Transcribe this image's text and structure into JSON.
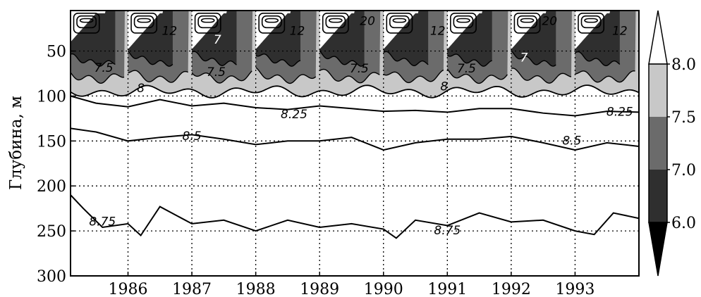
{
  "chart_data": {
    "type": "heatmap",
    "title": "",
    "xlabel": "",
    "ylabel": "Глубина, м",
    "xlim": [
      1985.1,
      1994.0
    ],
    "ylim": [
      300,
      5
    ],
    "x_ticks": [
      1986,
      1987,
      1988,
      1989,
      1990,
      1991,
      1992,
      1993
    ],
    "x_tick_labels": [
      "1986",
      "1987",
      "1988",
      "1989",
      "1990",
      "1991",
      "1992",
      "1993"
    ],
    "y_ticks": [
      50,
      100,
      150,
      200,
      250,
      300
    ],
    "y_tick_labels": [
      "50",
      "100",
      "150",
      "200",
      "250",
      "300"
    ],
    "grid": true,
    "colorbar": {
      "levels": [
        6.0,
        7.0,
        7.5,
        8.0
      ],
      "level_labels": [
        "6.0",
        "7.0",
        "7.5",
        "8.0"
      ],
      "colors": [
        "#000000",
        "#2f2f2f",
        "#6b6b6b",
        "#c8c8c8",
        "#ffffff"
      ],
      "extend": "both"
    },
    "contour_labels": [
      {
        "text": "12",
        "x": 1986.65,
        "y": 28
      },
      {
        "text": "7",
        "x": 1987.4,
        "y": 38
      },
      {
        "text": "12",
        "x": 1988.65,
        "y": 28
      },
      {
        "text": "20",
        "x": 1989.75,
        "y": 17
      },
      {
        "text": "12",
        "x": 1990.85,
        "y": 28
      },
      {
        "text": "20",
        "x": 1992.6,
        "y": 17
      },
      {
        "text": "7",
        "x": 1992.2,
        "y": 58
      },
      {
        "text": "12",
        "x": 1993.7,
        "y": 28
      },
      {
        "text": "7.5",
        "x": 1985.62,
        "y": 69
      },
      {
        "text": "7.5",
        "x": 1987.38,
        "y": 74
      },
      {
        "text": "7.5",
        "x": 1989.62,
        "y": 70
      },
      {
        "text": "7.5",
        "x": 1991.3,
        "y": 70
      },
      {
        "text": "8",
        "x": 1986.2,
        "y": 92
      },
      {
        "text": "8",
        "x": 1990.95,
        "y": 90
      },
      {
        "text": "8.25",
        "x": 1988.6,
        "y": 121
      },
      {
        "text": "8.25",
        "x": 1993.7,
        "y": 118
      },
      {
        "text": "8.5",
        "x": 1987.0,
        "y": 145
      },
      {
        "text": "8.5",
        "x": 1992.95,
        "y": 150
      },
      {
        "text": "8.75",
        "x": 1985.6,
        "y": 240
      },
      {
        "text": "8.75",
        "x": 1991.0,
        "y": 250
      }
    ],
    "isolines": [
      {
        "level": 8.25,
        "x": [
          1985.1,
          1985.5,
          1986.0,
          1986.5,
          1987.0,
          1987.5,
          1988.0,
          1988.5,
          1989.0,
          1989.5,
          1990.0,
          1990.5,
          1991.0,
          1991.5,
          1992.0,
          1992.5,
          1993.0,
          1993.5,
          1994.0
        ],
        "y": [
          100,
          108,
          112,
          104,
          111,
          108,
          113,
          115,
          111,
          114,
          117,
          116,
          118,
          114,
          114,
          119,
          122,
          117,
          118
        ]
      },
      {
        "level": 8.5,
        "x": [
          1985.1,
          1985.5,
          1986.0,
          1986.5,
          1987.0,
          1987.5,
          1988.0,
          1988.5,
          1989.0,
          1989.5,
          1990.0,
          1990.5,
          1991.0,
          1991.5,
          1992.0,
          1992.5,
          1993.0,
          1993.5,
          1994.0
        ],
        "y": [
          136,
          140,
          150,
          146,
          143,
          148,
          154,
          150,
          150,
          146,
          160,
          152,
          148,
          148,
          145,
          152,
          160,
          152,
          156
        ]
      },
      {
        "level": 8.75,
        "x": [
          1985.1,
          1985.3,
          1985.6,
          1986.0,
          1986.2,
          1986.5,
          1987.0,
          1987.5,
          1988.0,
          1988.5,
          1989.0,
          1989.5,
          1990.0,
          1990.2,
          1990.5,
          1991.0,
          1991.5,
          1992.0,
          1992.5,
          1993.0,
          1993.3,
          1993.6,
          1994.0
        ],
        "y": [
          210,
          225,
          246,
          242,
          255,
          223,
          242,
          238,
          250,
          238,
          246,
          242,
          248,
          258,
          238,
          244,
          230,
          240,
          238,
          250,
          254,
          230,
          236
        ]
      }
    ]
  }
}
